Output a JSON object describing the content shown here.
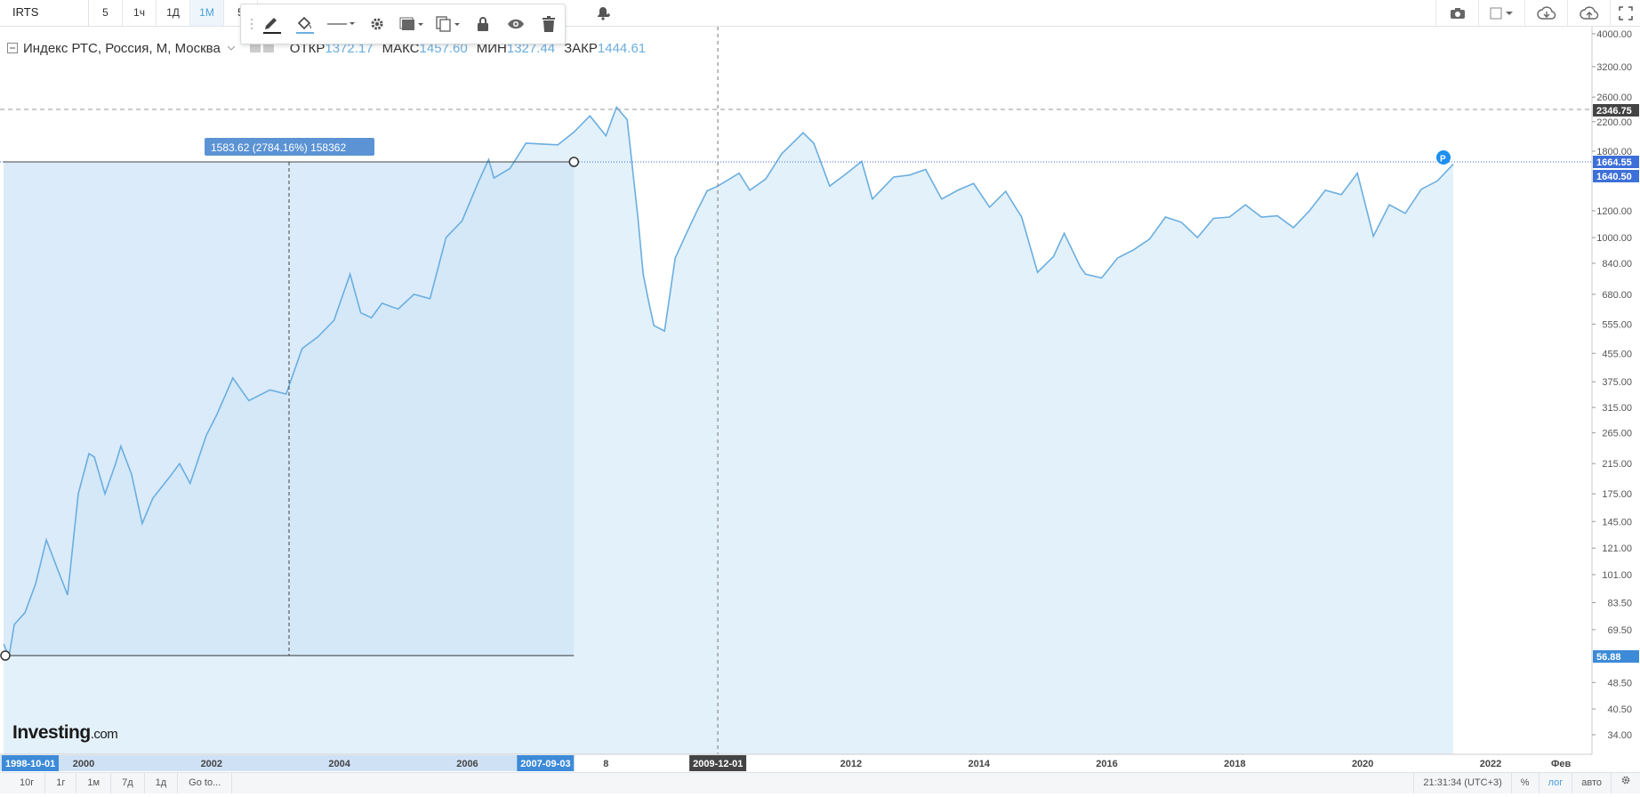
{
  "toolbar": {
    "symbol": "IRTS",
    "intervals": [
      "5",
      "1ч",
      "1Д",
      "1М",
      "5"
    ],
    "active_interval": "1М"
  },
  "legend": {
    "title": "Индекс РТС, Россия, М, Москва",
    "open_label": "ОТКР",
    "open": "1372.17",
    "high_label": "МАКС",
    "high": "1457.60",
    "low_label": "МИН",
    "low": "1327.44",
    "close_label": "ЗАКР",
    "close": "1444.61"
  },
  "measure_label": "1583.62 (2784.16%) 158362",
  "price_badges": {
    "crosshair": "2346.75",
    "last": "1664.55",
    "last2": "1640.50",
    "measure_low": "56.88"
  },
  "date_badges": {
    "start": "1998-10-01",
    "end": "2007-09-03",
    "crosshair": "2009-12-01"
  },
  "bottombar": {
    "ranges": [
      "10г",
      "1г",
      "1м",
      "7д",
      "1д",
      "Go to..."
    ],
    "time": "21:31:34 (UTC+3)",
    "percent": "%",
    "log": "лог",
    "auto": "авто"
  },
  "logo": {
    "main": "Investing",
    "suffix": ".com"
  },
  "colors": {
    "line": "#6aaee0",
    "area": "#e3f1fa",
    "measure": "#cfe4f7",
    "badge": "#3d8bd8"
  },
  "chart_data": {
    "type": "area",
    "title": "Индекс РТС, Россия, М, Москва",
    "scale": "log",
    "y_ticks": [
      "4000.00",
      "3200.00",
      "2600.00",
      "2200.00",
      "1800.00",
      "1200.00",
      "1000.00",
      "840.00",
      "680.00",
      "555.00",
      "455.00",
      "375.00",
      "315.00",
      "265.00",
      "215.00",
      "175.00",
      "145.00",
      "121.00",
      "101.00",
      "83.50",
      "69.50",
      "48.50",
      "40.50",
      "34.00"
    ],
    "x_ticks": [
      "2000",
      "2002",
      "2004",
      "2006",
      "2008",
      "2012",
      "2014",
      "2016",
      "2018",
      "2020",
      "2022",
      "Фев"
    ],
    "series": [
      {
        "values": [
          [
            "1998-10",
            63
          ],
          [
            "1998-11",
            58
          ],
          [
            "1998-12",
            72
          ],
          [
            "1999-02",
            78
          ],
          [
            "1999-04",
            95
          ],
          [
            "1999-06",
            128
          ],
          [
            "1999-08",
            106
          ],
          [
            "1999-10",
            88
          ],
          [
            "1999-12",
            175
          ],
          [
            "2000-02",
            230
          ],
          [
            "2000-03",
            225
          ],
          [
            "2000-05",
            175
          ],
          [
            "2000-07",
            215
          ],
          [
            "2000-08",
            242
          ],
          [
            "2000-10",
            200
          ],
          [
            "2000-12",
            143
          ],
          [
            "2001-02",
            170
          ],
          [
            "2001-05",
            195
          ],
          [
            "2001-07",
            215
          ],
          [
            "2001-09",
            188
          ],
          [
            "2001-12",
            260
          ],
          [
            "2002-02",
            300
          ],
          [
            "2002-05",
            385
          ],
          [
            "2002-08",
            330
          ],
          [
            "2002-12",
            355
          ],
          [
            "2003-03",
            345
          ],
          [
            "2003-06",
            470
          ],
          [
            "2003-09",
            510
          ],
          [
            "2003-12",
            570
          ],
          [
            "2004-03",
            780
          ],
          [
            "2004-05",
            600
          ],
          [
            "2004-07",
            580
          ],
          [
            "2004-09",
            640
          ],
          [
            "2004-12",
            615
          ],
          [
            "2005-03",
            680
          ],
          [
            "2005-06",
            660
          ],
          [
            "2005-09",
            1000
          ],
          [
            "2005-12",
            1120
          ],
          [
            "2006-03",
            1450
          ],
          [
            "2006-05",
            1700
          ],
          [
            "2006-06",
            1500
          ],
          [
            "2006-09",
            1600
          ],
          [
            "2006-12",
            1900
          ],
          [
            "2007-03",
            1890
          ],
          [
            "2007-06",
            1880
          ],
          [
            "2007-09",
            2050
          ],
          [
            "2007-12",
            2290
          ],
          [
            "2008-03",
            2000
          ],
          [
            "2008-05",
            2430
          ],
          [
            "2008-07",
            2230
          ],
          [
            "2008-09",
            1150
          ],
          [
            "2008-10",
            780
          ],
          [
            "2008-11",
            650
          ],
          [
            "2008-12",
            550
          ],
          [
            "2009-02",
            530
          ],
          [
            "2009-04",
            870
          ],
          [
            "2009-06",
            1020
          ],
          [
            "2009-08",
            1190
          ],
          [
            "2009-10",
            1375
          ],
          [
            "2009-12",
            1420
          ],
          [
            "2010-04",
            1550
          ],
          [
            "2010-06",
            1380
          ],
          [
            "2010-09",
            1490
          ],
          [
            "2010-12",
            1770
          ],
          [
            "2011-04",
            2040
          ],
          [
            "2011-06",
            1900
          ],
          [
            "2011-09",
            1420
          ],
          [
            "2011-12",
            1540
          ],
          [
            "2012-03",
            1680
          ],
          [
            "2012-05",
            1300
          ],
          [
            "2012-09",
            1510
          ],
          [
            "2012-12",
            1530
          ],
          [
            "2013-03",
            1590
          ],
          [
            "2013-06",
            1300
          ],
          [
            "2013-09",
            1380
          ],
          [
            "2013-12",
            1445
          ],
          [
            "2014-03",
            1230
          ],
          [
            "2014-06",
            1370
          ],
          [
            "2014-09",
            1150
          ],
          [
            "2014-12",
            790
          ],
          [
            "2015-03",
            880
          ],
          [
            "2015-05",
            1030
          ],
          [
            "2015-08",
            820
          ],
          [
            "2015-09",
            780
          ],
          [
            "2015-12",
            760
          ],
          [
            "2016-03",
            870
          ],
          [
            "2016-06",
            920
          ],
          [
            "2016-09",
            990
          ],
          [
            "2016-12",
            1150
          ],
          [
            "2017-03",
            1110
          ],
          [
            "2017-06",
            1000
          ],
          [
            "2017-09",
            1140
          ],
          [
            "2017-12",
            1150
          ],
          [
            "2018-03",
            1250
          ],
          [
            "2018-06",
            1150
          ],
          [
            "2018-09",
            1160
          ],
          [
            "2018-12",
            1070
          ],
          [
            "2019-03",
            1200
          ],
          [
            "2019-06",
            1380
          ],
          [
            "2019-09",
            1340
          ],
          [
            "2019-12",
            1550
          ],
          [
            "2020-03",
            1010
          ],
          [
            "2020-06",
            1250
          ],
          [
            "2020-09",
            1180
          ],
          [
            "2020-12",
            1390
          ],
          [
            "2021-03",
            1470
          ],
          [
            "2021-06",
            1650
          ]
        ]
      }
    ]
  }
}
